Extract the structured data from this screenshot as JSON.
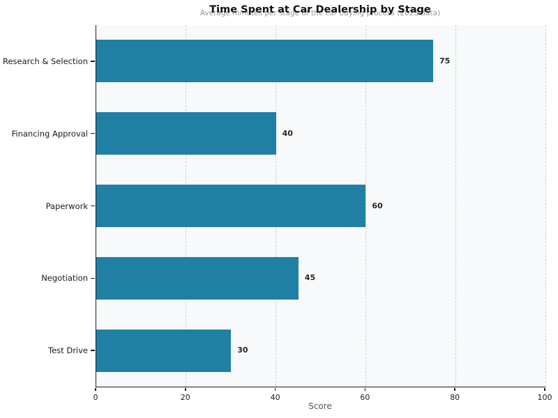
{
  "chart_data": {
    "type": "bar",
    "orientation": "horizontal",
    "title": "Time Spent at Car Dealership by Stage",
    "subtitle": "Average minutes per stage of the car buying process (2023 data)",
    "categories": [
      "Research & Selection",
      "Financing Approval",
      "Paperwork",
      "Negotiation",
      "Test Drive"
    ],
    "values": [
      75,
      40,
      60,
      45,
      30
    ],
    "xlabel": "Score",
    "xlim": [
      0,
      100
    ],
    "x_ticks": [
      0,
      20,
      40,
      60,
      80,
      100
    ],
    "legend": "none",
    "grid": "vertical-dashed",
    "colors": {
      "bar": "#2080a4",
      "plot_background": "#f8f9fa",
      "page_background": "#ffffff",
      "gridline": "#cfcfcf",
      "title_text": "#111111",
      "subtitle_text": "#9a9a9a",
      "value_label_text": "#262626",
      "axis_text": "#1a1a1a",
      "xlabel_text": "#555555"
    }
  }
}
